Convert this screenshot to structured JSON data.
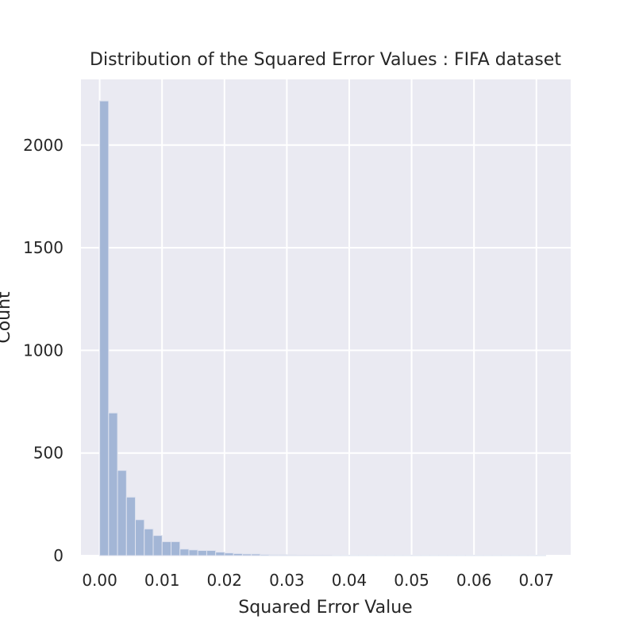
{
  "chart_data": {
    "type": "bar",
    "title": "Distribution of the Squared Error Values : FIFA dataset",
    "xlabel": "Squared Error Value",
    "ylabel": "Count",
    "xlim": [
      -0.003,
      0.0755
    ],
    "ylim": [
      0,
      2320
    ],
    "xticks": [
      0.0,
      0.01,
      0.02,
      0.03,
      0.04,
      0.05,
      0.06,
      0.07
    ],
    "xtick_labels": [
      "0.00",
      "0.01",
      "0.02",
      "0.03",
      "0.04",
      "0.05",
      "0.06",
      "0.07"
    ],
    "yticks": [
      0,
      500,
      1000,
      1500,
      2000
    ],
    "ytick_labels": [
      "0",
      "500",
      "1000",
      "1500",
      "2000"
    ],
    "grid": true,
    "background": "#eaeaf2",
    "bar_color": "#a3b6d6",
    "bin_width": 0.00143,
    "bin_starts": [
      0.0,
      0.00143,
      0.00286,
      0.00429,
      0.00572,
      0.00715,
      0.00858,
      0.01001,
      0.01144,
      0.01287,
      0.0143,
      0.01573,
      0.01716,
      0.01859,
      0.02002,
      0.02145,
      0.02288,
      0.02431,
      0.02574,
      0.02717,
      0.0286,
      0.03003,
      0.03146,
      0.03289,
      0.03432,
      0.03575,
      0.03718,
      0.03861,
      0.04004,
      0.04147,
      0.0429,
      0.04433,
      0.04576,
      0.04719,
      0.04862,
      0.05005,
      0.05148,
      0.05291,
      0.05434,
      0.05577,
      0.0572,
      0.05863,
      0.06006,
      0.06149,
      0.06292,
      0.06435,
      0.06578,
      0.06721,
      0.06864,
      0.07007
    ],
    "values": [
      2215,
      695,
      415,
      285,
      175,
      130,
      98,
      68,
      68,
      32,
      28,
      25,
      25,
      17,
      13,
      10,
      8,
      8,
      5,
      4,
      4,
      3,
      2,
      2,
      2,
      2,
      1,
      1,
      1,
      1,
      1,
      1,
      1,
      1,
      1,
      1,
      1,
      1,
      1,
      1,
      1,
      1,
      1,
      1,
      1,
      1,
      1,
      1,
      1,
      1
    ]
  }
}
